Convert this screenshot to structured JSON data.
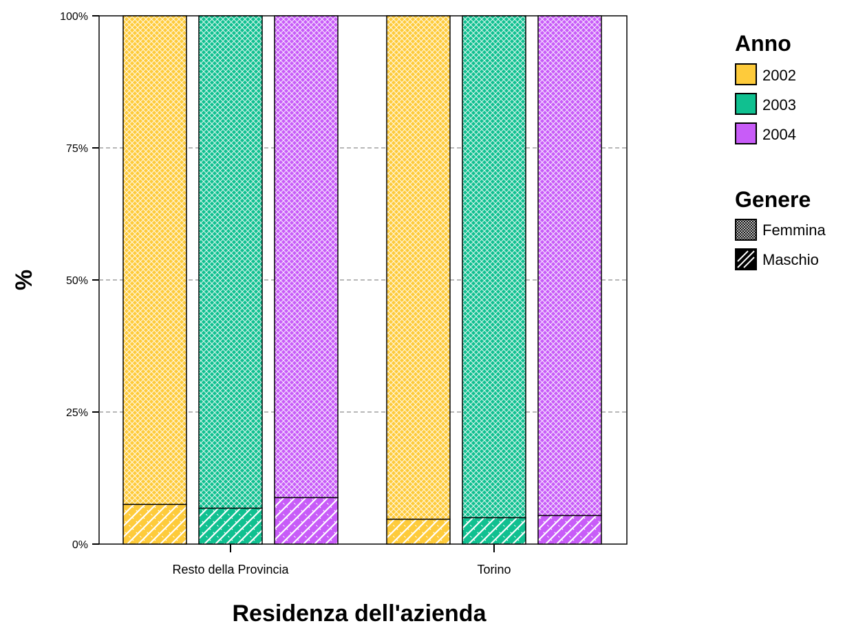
{
  "chart_data": {
    "type": "bar",
    "stacked": true,
    "percent": true,
    "xlabel": "Residenza dell'azienda",
    "ylabel": "%",
    "ylim": [
      0,
      100
    ],
    "yticks": [
      "0%",
      "25%",
      "50%",
      "75%",
      "100%"
    ],
    "grid": "horizontal dashed",
    "categories": [
      "Resto della Provincia",
      "Torino"
    ],
    "legend_position": "right",
    "legend_groups": [
      {
        "title": "Anno",
        "entries": [
          "2002",
          "2003",
          "2004"
        ]
      },
      {
        "title": "Genere",
        "entries": [
          "Femmina",
          "Maschio"
        ]
      }
    ],
    "series": [
      {
        "name": "2002",
        "color": "#fecb3b",
        "maschio": [
          7.5,
          4.7
        ],
        "femmina": [
          92.5,
          95.3
        ]
      },
      {
        "name": "2003",
        "color": "#10c090",
        "maschio": [
          6.8,
          5.0
        ],
        "femmina": [
          93.2,
          95.0
        ]
      },
      {
        "name": "2004",
        "color": "#c85cf8",
        "maschio": [
          8.8,
          5.4
        ],
        "femmina": [
          91.2,
          94.6
        ]
      }
    ]
  }
}
